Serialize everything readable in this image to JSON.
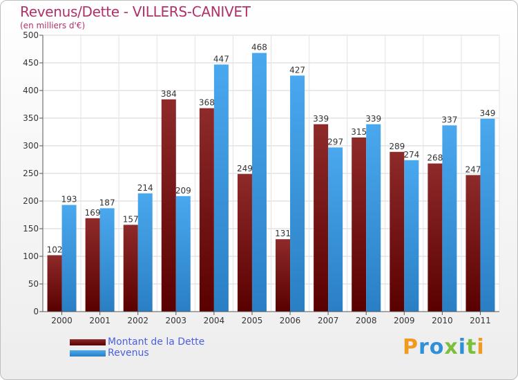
{
  "chart_data": {
    "type": "bar",
    "title": "Revenus/Dette - VILLERS-CANIVET",
    "subtitle": "(en milliers d'€)",
    "categories": [
      "2000",
      "2001",
      "2002",
      "2003",
      "2004",
      "2005",
      "2006",
      "2007",
      "2008",
      "2009",
      "2010",
      "2011"
    ],
    "series": [
      {
        "name": "Montant de la Dette",
        "color": "#8b1c1c",
        "values": [
          102,
          169,
          157,
          384,
          368,
          249,
          131,
          339,
          315,
          289,
          268,
          247
        ]
      },
      {
        "name": "Revenus",
        "color": "#3a96dd",
        "values": [
          193,
          187,
          214,
          209,
          447,
          468,
          427,
          297,
          339,
          274,
          337,
          349
        ]
      }
    ],
    "ylim": [
      0,
      500
    ],
    "yticks": [
      0,
      50,
      100,
      150,
      200,
      250,
      300,
      350,
      400,
      450,
      500
    ],
    "grid": true,
    "legend": "bottom-left"
  },
  "logo": {
    "letters": [
      "P",
      "r",
      "o",
      "x",
      "i",
      "t",
      "i"
    ]
  }
}
